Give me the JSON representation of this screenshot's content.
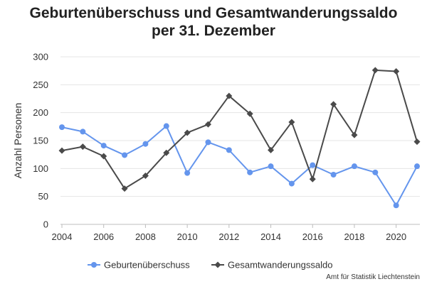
{
  "title_line1": "Geburtenüberschuss und Gesamtwanderungssaldo",
  "title_line2": "per 31. Dezember",
  "source": "Amt für Statistik Liechtenstein",
  "chart_data": {
    "type": "line",
    "title": "Geburtenüberschuss und Gesamtwanderungssaldo per 31. Dezember",
    "ylabel": "Anzahl Personen",
    "xlabel": "",
    "ylim": [
      0,
      300
    ],
    "yticks": [
      0,
      50,
      100,
      150,
      200,
      250,
      300
    ],
    "xlim": [
      2004,
      2021
    ],
    "xticks": [
      2004,
      2006,
      2008,
      2010,
      2012,
      2014,
      2016,
      2018,
      2020
    ],
    "grid": "horizontal",
    "legend": "bottom",
    "x": [
      2004,
      2005,
      2006,
      2007,
      2008,
      2009,
      2010,
      2011,
      2012,
      2013,
      2014,
      2015,
      2016,
      2017,
      2018,
      2019,
      2020,
      2021
    ],
    "series": [
      {
        "name": "Geburtenüberschuss",
        "color": "#6495ed",
        "marker": "circle",
        "values": [
          174,
          166,
          141,
          124,
          144,
          176,
          92,
          147,
          133,
          93,
          104,
          73,
          106,
          89,
          104,
          93,
          34,
          104
        ]
      },
      {
        "name": "Gesamtwanderungssaldo",
        "color": "#4a4a4a",
        "marker": "diamond",
        "values": [
          132,
          139,
          122,
          64,
          87,
          128,
          164,
          179,
          230,
          198,
          133,
          183,
          81,
          215,
          160,
          276,
          274,
          148
        ]
      }
    ]
  }
}
